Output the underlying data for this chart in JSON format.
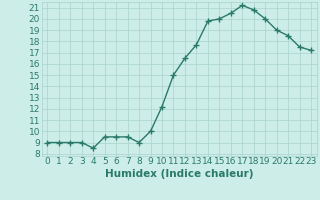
{
  "x": [
    0,
    1,
    2,
    3,
    4,
    5,
    6,
    7,
    8,
    9,
    10,
    11,
    12,
    13,
    14,
    15,
    16,
    17,
    18,
    19,
    20,
    21,
    22,
    23
  ],
  "y": [
    9,
    9,
    9,
    9,
    8.5,
    9.5,
    9.5,
    9.5,
    9,
    10,
    12.2,
    15,
    16.5,
    17.7,
    19.8,
    20,
    20.5,
    21.2,
    20.8,
    20,
    19,
    18.5,
    17.5,
    17.2
  ],
  "line_color": "#2a7a6a",
  "bg_color": "#cdeee8",
  "grid_color": "#a8d4cc",
  "xlabel": "Humidex (Indice chaleur)",
  "ylabel_ticks": [
    8,
    9,
    10,
    11,
    12,
    13,
    14,
    15,
    16,
    17,
    18,
    19,
    20,
    21
  ],
  "ylim": [
    7.8,
    21.5
  ],
  "xlim": [
    -0.5,
    23.5
  ],
  "marker": "+",
  "linewidth": 1.0,
  "markersize": 4,
  "markeredgewidth": 1.0,
  "font_color": "#2a7a6a",
  "xlabel_fontsize": 7.5,
  "tick_fontsize": 6.5
}
